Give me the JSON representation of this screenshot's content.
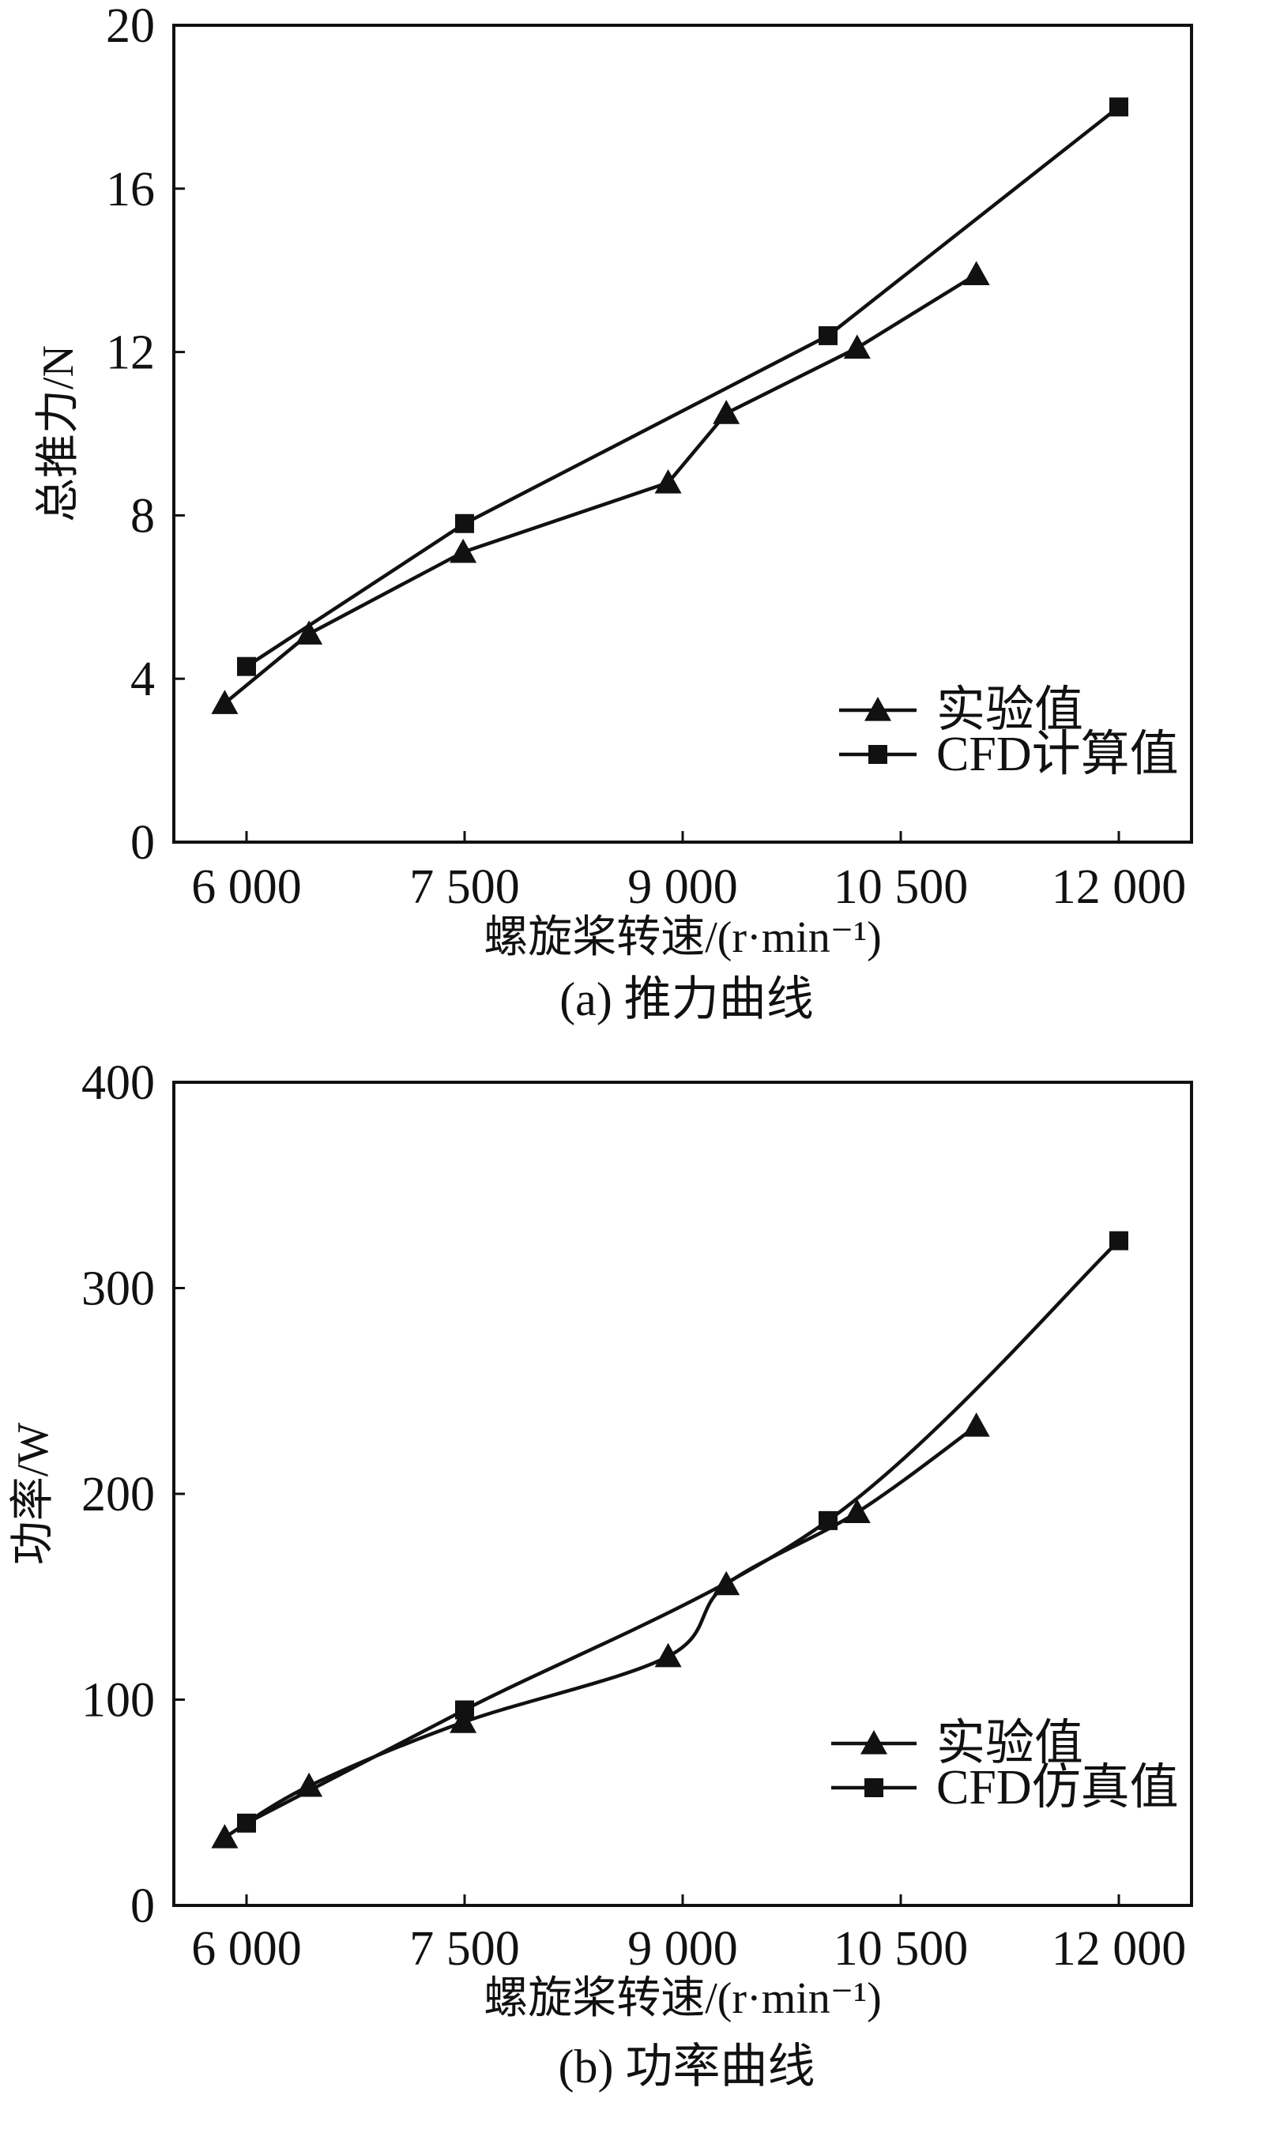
{
  "chart_data": [
    {
      "type": "line",
      "caption": "(a) 推力曲线",
      "xlabel": "螺旋桨转速/(r·min⁻¹)",
      "ylabel": "总推力/N",
      "xlim": [
        5500,
        12500
      ],
      "ylim": [
        0,
        20
      ],
      "xticks": [
        6000,
        7500,
        9000,
        10500,
        12000
      ],
      "xtick_labels": [
        "6 000",
        "7 500",
        "9 000",
        "10 500",
        "12 000"
      ],
      "yticks": [
        0,
        4,
        8,
        12,
        16,
        20
      ],
      "ytick_labels": [
        "0",
        "4",
        "8",
        "12",
        "16",
        "20"
      ],
      "legend_position": "bottom-right",
      "grid": false,
      "series": [
        {
          "name": "实验值",
          "marker": "triangle",
          "x": [
            5850,
            6430,
            7490,
            8900,
            9300,
            10200,
            11020
          ],
          "y": [
            3.4,
            5.1,
            7.1,
            8.8,
            10.5,
            12.1,
            13.9
          ]
        },
        {
          "name": "CFD计算值",
          "marker": "square",
          "x": [
            6000,
            7500,
            10000,
            12000
          ],
          "y": [
            4.3,
            7.8,
            12.4,
            18.0
          ]
        }
      ]
    },
    {
      "type": "line",
      "caption": "(b) 功率曲线",
      "xlabel": "螺旋桨转速/(r·min⁻¹)",
      "ylabel": "功率/W",
      "xlim": [
        5500,
        12500
      ],
      "ylim": [
        0,
        400
      ],
      "xticks": [
        6000,
        7500,
        9000,
        10500,
        12000
      ],
      "xtick_labels": [
        "6 000",
        "7 500",
        "9 000",
        "10 500",
        "12 000"
      ],
      "yticks": [
        0,
        100,
        200,
        300,
        400
      ],
      "ytick_labels": [
        "0",
        "100",
        "200",
        "300",
        "400"
      ],
      "legend_position": "bottom-right",
      "grid": false,
      "series": [
        {
          "name": "实验值",
          "marker": "triangle",
          "x": [
            5850,
            6430,
            7490,
            8900,
            9300,
            10200,
            11020
          ],
          "y": [
            33,
            58,
            89,
            121,
            156,
            191,
            233
          ]
        },
        {
          "name": "CFD仿真值",
          "marker": "square",
          "x": [
            6000,
            7500,
            10000,
            12000
          ],
          "y": [
            40,
            95,
            187,
            323
          ]
        }
      ]
    }
  ]
}
